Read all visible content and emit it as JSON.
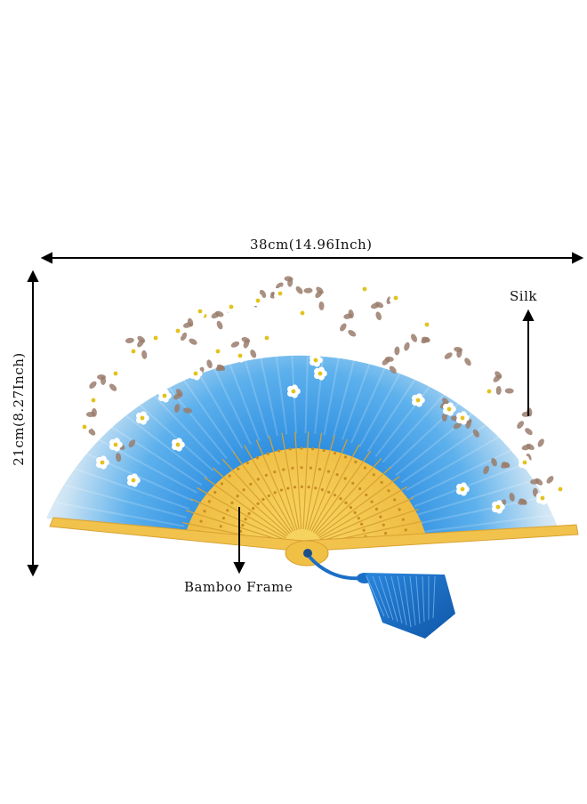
{
  "dimensions": {
    "width_label": "38cm(14.96Inch)",
    "height_label": "21cm(8.27Inch)"
  },
  "callouts": {
    "silk_label": "Silk",
    "bamboo_label": "Bamboo Frame"
  },
  "colors": {
    "silk_blue": "#3a9ae0",
    "silk_light": "#e9f1f8",
    "bamboo": "#f2c64e",
    "tassel": "#1c6fc6",
    "flower_brown": "#9a7c6c",
    "blossom_white": "#ffffff",
    "blossom_center": "#e3c21d"
  }
}
